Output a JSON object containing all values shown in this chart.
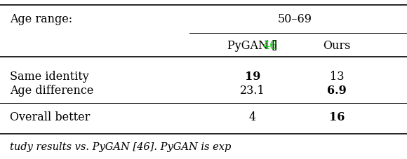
{
  "age_range_label": "Age range:",
  "age_range_value": "50–69",
  "col1_header_parts": [
    "PyGAN [",
    "46",
    "]"
  ],
  "col1_ref_color": "#00cc00",
  "col2_header": "Ours",
  "rows": [
    {
      "label": "Same identity",
      "col1": "19",
      "col1_bold": true,
      "col2": "13",
      "col2_bold": false
    },
    {
      "label": "Age difference",
      "col1": "23.1",
      "col1_bold": false,
      "col2": "6.9",
      "col2_bold": true
    },
    {
      "label": "Overall better",
      "col1": "4",
      "col1_bold": false,
      "col2": "16",
      "col2_bold": true
    }
  ],
  "bottom_text": "tudy results vs. PyGAN [46]. PyGAN is exp",
  "bg_color": "#ffffff",
  "text_color": "#000000",
  "font_size": 11.5,
  "ref_color": "#00cc00",
  "fig_width": 5.8,
  "fig_height": 2.28,
  "dpi": 100
}
